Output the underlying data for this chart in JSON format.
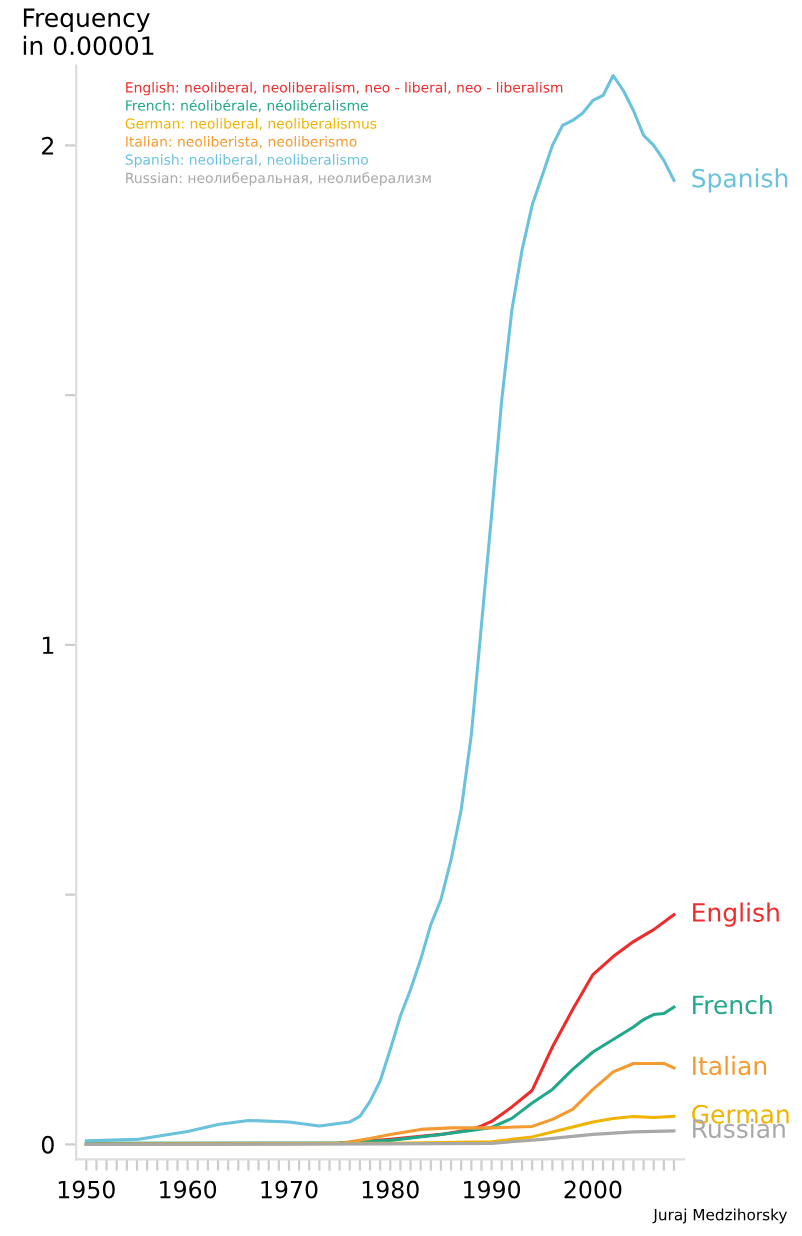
{
  "chart_data": {
    "type": "line",
    "ylabel": "Frequency\nin 0.00001",
    "xlim": [
      1949,
      2009
    ],
    "ylim": [
      -0.03,
      2.16
    ],
    "xticks": [
      1950,
      {
        "value": 1951,
        "label": null
      },
      {
        "value": 1952,
        "label": null
      },
      {
        "value": 1953,
        "label": null
      },
      {
        "value": 1954,
        "label": null
      },
      {
        "value": 1955,
        "label": null
      },
      {
        "value": 1956,
        "label": null
      },
      {
        "value": 1957,
        "label": null
      },
      {
        "value": 1958,
        "label": null
      },
      {
        "value": 1959,
        "label": null
      },
      1960,
      {
        "value": 1961,
        "label": null
      },
      {
        "value": 1962,
        "label": null
      },
      {
        "value": 1963,
        "label": null
      },
      {
        "value": 1964,
        "label": null
      },
      {
        "value": 1965,
        "label": null
      },
      {
        "value": 1966,
        "label": null
      },
      {
        "value": 1967,
        "label": null
      },
      {
        "value": 1968,
        "label": null
      },
      {
        "value": 1969,
        "label": null
      },
      1970,
      {
        "value": 1971,
        "label": null
      },
      {
        "value": 1972,
        "label": null
      },
      {
        "value": 1973,
        "label": null
      },
      {
        "value": 1974,
        "label": null
      },
      {
        "value": 1975,
        "label": null
      },
      {
        "value": 1976,
        "label": null
      },
      {
        "value": 1977,
        "label": null
      },
      {
        "value": 1978,
        "label": null
      },
      {
        "value": 1979,
        "label": null
      },
      1980,
      {
        "value": 1981,
        "label": null
      },
      {
        "value": 1982,
        "label": null
      },
      {
        "value": 1983,
        "label": null
      },
      {
        "value": 1984,
        "label": null
      },
      {
        "value": 1985,
        "label": null
      },
      {
        "value": 1986,
        "label": null
      },
      {
        "value": 1987,
        "label": null
      },
      {
        "value": 1988,
        "label": null
      },
      {
        "value": 1989,
        "label": null
      },
      1990,
      {
        "value": 1991,
        "label": null
      },
      {
        "value": 1992,
        "label": null
      },
      {
        "value": 1993,
        "label": null
      },
      {
        "value": 1994,
        "label": null
      },
      {
        "value": 1995,
        "label": null
      },
      {
        "value": 1996,
        "label": null
      },
      {
        "value": 1997,
        "label": null
      },
      {
        "value": 1998,
        "label": null
      },
      {
        "value": 1999,
        "label": null
      },
      2000,
      {
        "value": 2001,
        "label": null
      },
      {
        "value": 2002,
        "label": null
      },
      {
        "value": 2003,
        "label": null
      },
      {
        "value": 2004,
        "label": null
      },
      {
        "value": 2005,
        "label": null
      },
      {
        "value": 2006,
        "label": null
      },
      {
        "value": 2007,
        "label": null
      },
      {
        "value": 2008,
        "label": null
      }
    ],
    "yticks": [
      0,
      {
        "value": 0.5,
        "label": null
      },
      1,
      {
        "value": 1.5,
        "label": null
      },
      2
    ],
    "grid": false,
    "legend": false,
    "series": [
      {
        "name": "English",
        "color": "#ee2c2c",
        "x": [
          1950,
          1975,
          1980,
          1985,
          1988,
          1989,
          1990,
          1992,
          1994,
          1996,
          1998,
          2000,
          2002,
          2004,
          2006,
          2008
        ],
        "values": [
          0.0,
          0.002,
          0.01,
          0.02,
          0.03,
          0.037,
          0.046,
          0.075,
          0.108,
          0.195,
          0.27,
          0.34,
          0.376,
          0.406,
          0.43,
          0.46
        ]
      },
      {
        "name": "French",
        "color": "#20a88a",
        "x": [
          1950,
          1975,
          1980,
          1985,
          1988,
          1990,
          1992,
          1994,
          1996,
          1998,
          2000,
          2002,
          2004,
          2005,
          2006,
          2007,
          2008
        ],
        "values": [
          0.002,
          0.003,
          0.008,
          0.02,
          0.028,
          0.034,
          0.052,
          0.083,
          0.11,
          0.15,
          0.185,
          0.21,
          0.235,
          0.25,
          0.26,
          0.262,
          0.275
        ]
      },
      {
        "name": "Italian",
        "color": "#f59a30",
        "x": [
          1950,
          1975,
          1978,
          1980,
          1983,
          1986,
          1990,
          1994,
          1996,
          1998,
          2000,
          2002,
          2004,
          2006,
          2007,
          2008
        ],
        "values": [
          0.0,
          0.002,
          0.012,
          0.02,
          0.03,
          0.033,
          0.033,
          0.036,
          0.05,
          0.07,
          0.11,
          0.145,
          0.162,
          0.162,
          0.162,
          0.153
        ]
      },
      {
        "name": "German",
        "color": "#f0b400",
        "x": [
          1950,
          1980,
          1990,
          1992,
          1994,
          1996,
          1998,
          2000,
          2002,
          2004,
          2006,
          2008
        ],
        "values": [
          0.0,
          0.002,
          0.005,
          0.01,
          0.015,
          0.025,
          0.035,
          0.045,
          0.052,
          0.056,
          0.054,
          0.056
        ]
      },
      {
        "name": "Russian",
        "color": "#a8a8a8",
        "x": [
          1950,
          1980,
          1990,
          1995,
          2000,
          2004,
          2008
        ],
        "values": [
          0.0,
          0.001,
          0.002,
          0.01,
          0.02,
          0.025,
          0.027
        ]
      },
      {
        "name": "Spanish",
        "color": "#6ac2dc",
        "x": [
          1950,
          1955,
          1960,
          1963,
          1966,
          1970,
          1973,
          1976,
          1977,
          1978,
          1979,
          1980,
          1981,
          1982,
          1983,
          1984,
          1985,
          1986,
          1987,
          1988,
          1989,
          1990,
          1991,
          1992,
          1993,
          1994,
          1995,
          1996,
          1997,
          1998,
          1999,
          2000,
          2001,
          2002,
          2003,
          2004,
          2005,
          2006,
          2007,
          2008
        ],
        "values": [
          0.007,
          0.01,
          0.026,
          0.04,
          0.048,
          0.045,
          0.037,
          0.045,
          0.056,
          0.086,
          0.127,
          0.19,
          0.257,
          0.31,
          0.37,
          0.44,
          0.49,
          0.57,
          0.67,
          0.82,
          1.04,
          1.26,
          1.49,
          1.67,
          1.79,
          1.88,
          1.94,
          2.0,
          2.04,
          2.05,
          2.065,
          2.09,
          2.1,
          2.14,
          2.11,
          2.07,
          2.02,
          2.0,
          1.97,
          1.93
        ]
      }
    ],
    "annotations": [
      "English: neoliberal, neoliberalism, neo - liberal, neo - liberalism",
      "French: néolibérale, néolibéralisme",
      "German: neoliberal, neoliberalismus",
      "Italian: neoliberista, neoliberismo",
      "Spanish: neoliberal, neoliberalismo",
      "Russian: неолиберальная, неолиберализм",
      "Juraj Medzihorsky"
    ]
  }
}
